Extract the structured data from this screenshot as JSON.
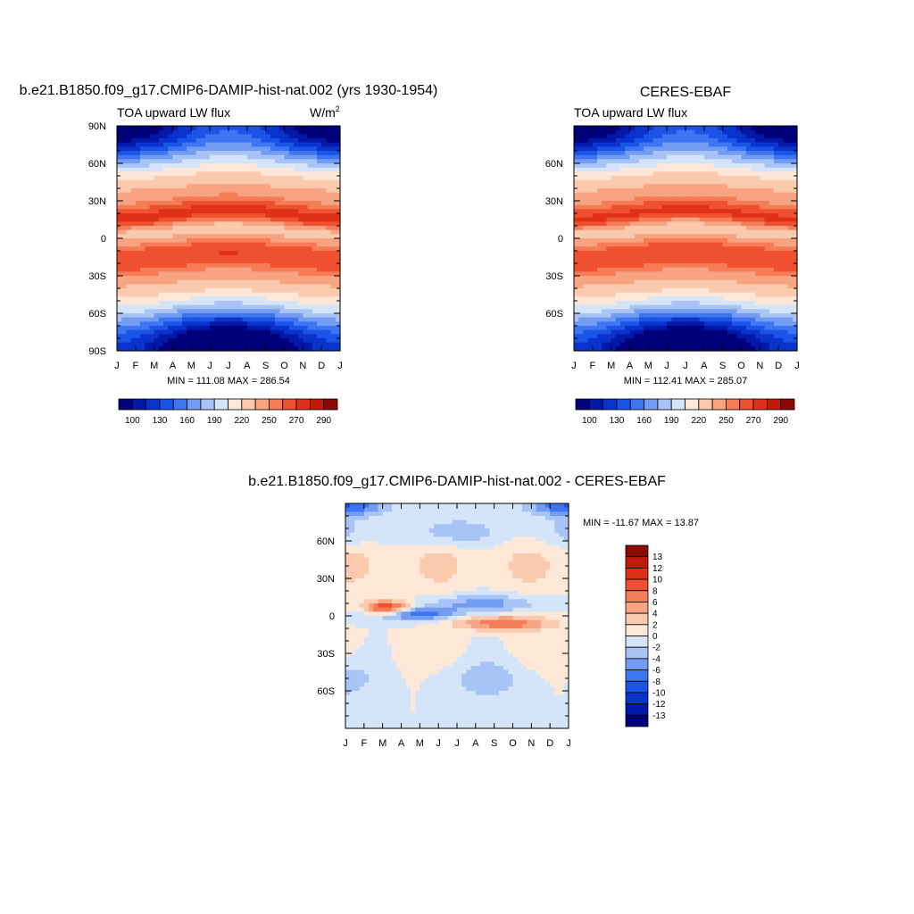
{
  "chart_data": [
    {
      "type": "heatmap",
      "title": "b.e21.B1850.f09_g17.CMIP6-DAMIP-hist-nat.002 (yrs 1930-1954)",
      "subtitle": "TOA upward LW flux",
      "units": "W/m",
      "units_sup": "2",
      "stats": "MIN = 111.08 MAX = 286.54",
      "x_ticks": [
        "J",
        "F",
        "M",
        "A",
        "M",
        "J",
        "J",
        "A",
        "S",
        "O",
        "N",
        "D",
        "J"
      ],
      "y_ticks": [
        "90N",
        "60N",
        "30N",
        "0",
        "30S",
        "60S",
        "90S"
      ],
      "ylim": [
        -90,
        90
      ],
      "colorbar": {
        "orientation": "horizontal",
        "labels": [
          "100",
          "130",
          "160",
          "190",
          "220",
          "250",
          "270",
          "290"
        ],
        "colors": [
          "#00007a",
          "#0019a8",
          "#0a33cc",
          "#1a54e6",
          "#3e75f0",
          "#729cf2",
          "#a8c3f5",
          "#d4e4f9",
          "#fde8d8",
          "#fbc9ad",
          "#f8a381",
          "#f57c56",
          "#ef5030",
          "#e03018",
          "#c01a0d",
          "#8c0a04"
        ]
      },
      "value_range": [
        111.08,
        286.54
      ]
    },
    {
      "type": "heatmap",
      "title": "CERES-EBAF",
      "subtitle": "TOA upward LW flux",
      "stats": "MIN = 112.41 MAX = 285.07",
      "x_ticks": [
        "J",
        "F",
        "M",
        "A",
        "M",
        "J",
        "J",
        "A",
        "S",
        "O",
        "N",
        "D",
        "J"
      ],
      "y_ticks": [
        "60N",
        "30N",
        "0",
        "30S",
        "60S"
      ],
      "ylim": [
        -90,
        90
      ],
      "colorbar": {
        "orientation": "horizontal",
        "labels": [
          "100",
          "130",
          "160",
          "190",
          "220",
          "250",
          "270",
          "290"
        ],
        "colors": [
          "#00007a",
          "#0019a8",
          "#0a33cc",
          "#1a54e6",
          "#3e75f0",
          "#729cf2",
          "#a8c3f5",
          "#d4e4f9",
          "#fde8d8",
          "#fbc9ad",
          "#f8a381",
          "#f57c56",
          "#ef5030",
          "#e03018",
          "#c01a0d",
          "#8c0a04"
        ]
      },
      "value_range": [
        112.41,
        285.07
      ]
    },
    {
      "type": "heatmap",
      "title": "b.e21.B1850.f09_g17.CMIP6-DAMIP-hist-nat.002 - CERES-EBAF",
      "stats": "MIN = -11.67 MAX =  13.87",
      "x_ticks": [
        "J",
        "F",
        "M",
        "A",
        "M",
        "J",
        "J",
        "A",
        "S",
        "O",
        "N",
        "D",
        "J"
      ],
      "y_ticks": [
        "60N",
        "30N",
        "0",
        "30S",
        "60S"
      ],
      "ylim": [
        -90,
        90
      ],
      "colorbar": {
        "orientation": "vertical",
        "labels": [
          "13",
          "12",
          "10",
          "8",
          "6",
          "4",
          "2",
          "0",
          "-2",
          "-4",
          "-6",
          "-8",
          "-10",
          "-12",
          "-13"
        ],
        "colors": [
          "#8c0a04",
          "#c01a0d",
          "#e03018",
          "#ef5030",
          "#f57c56",
          "#f8a381",
          "#fbc9ad",
          "#fde8d8",
          "#d4e4f9",
          "#a8c3f5",
          "#729cf2",
          "#3e75f0",
          "#1a54e6",
          "#0a33cc",
          "#0019a8",
          "#00007a"
        ]
      },
      "value_range": [
        -11.67,
        13.87
      ]
    }
  ]
}
